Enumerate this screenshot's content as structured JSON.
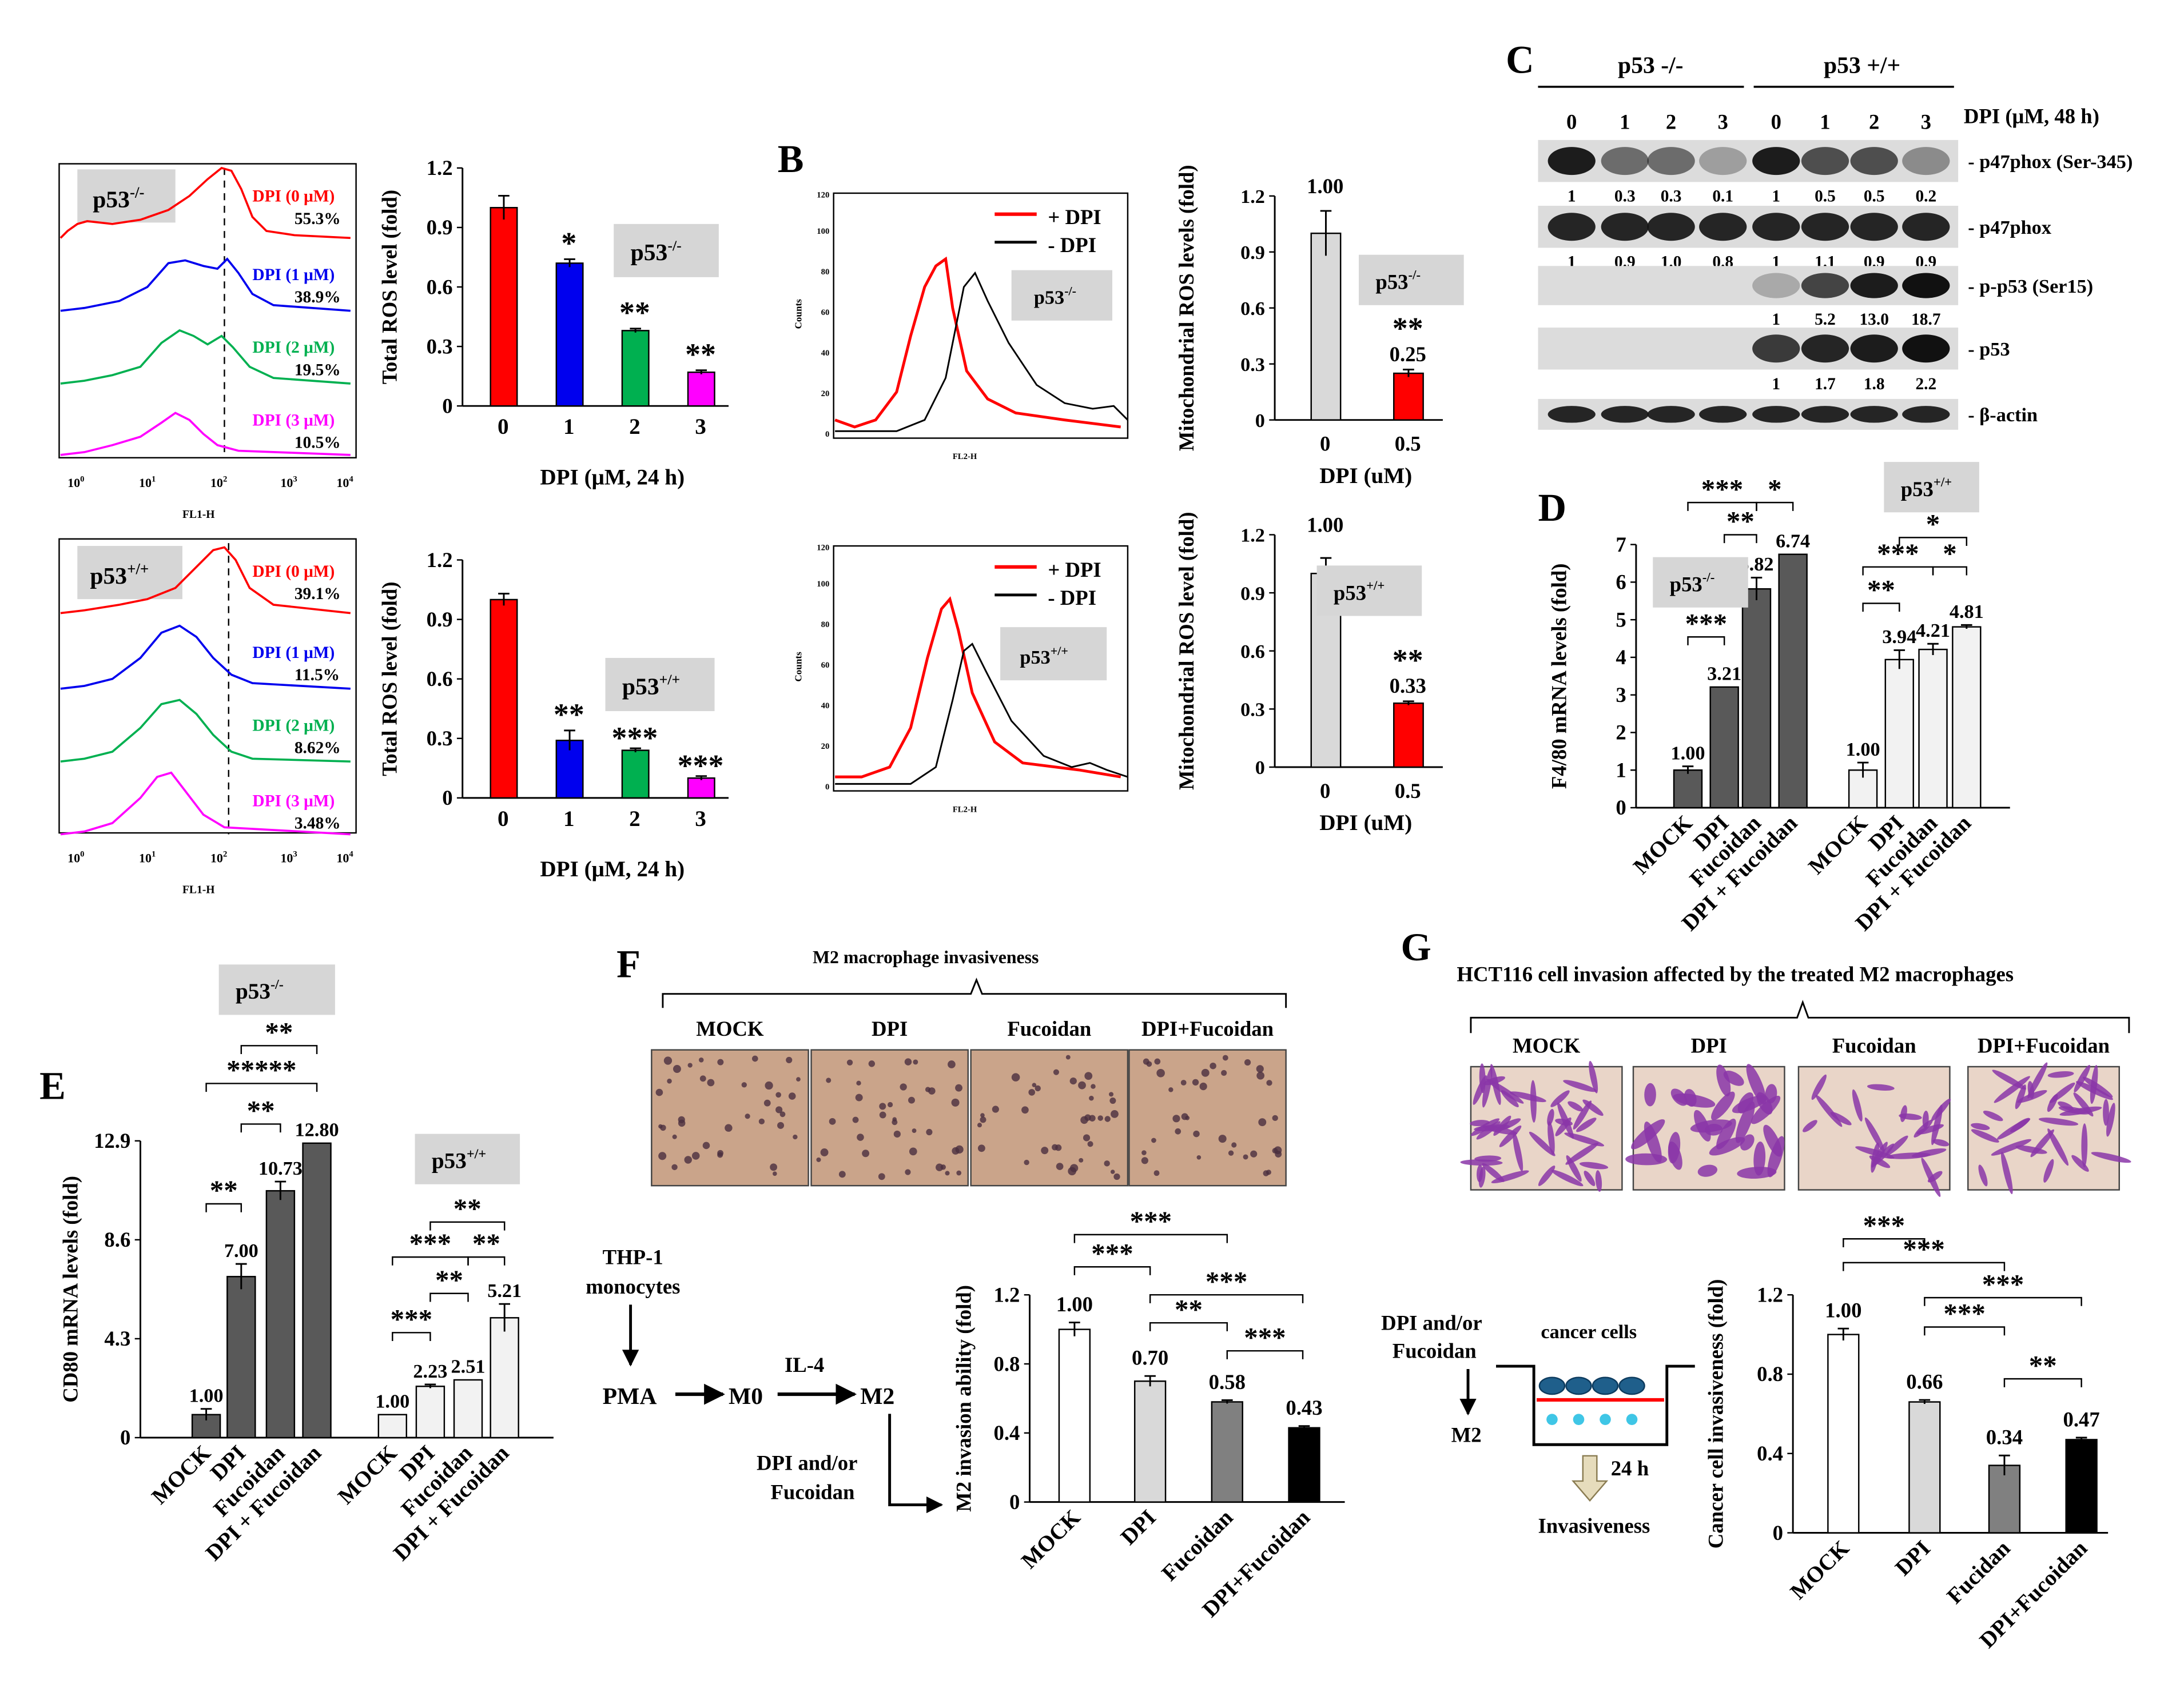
{
  "panel_labels": {
    "B": "B",
    "C": "C",
    "D": "D",
    "E": "E",
    "F": "F",
    "G": "G"
  },
  "colors": {
    "red": "#ff0000",
    "blue": "#0000ee",
    "green": "#00b050",
    "magenta": "#ff00ff",
    "dark": "#595959",
    "light": "#d9d9d9",
    "label_gray": "#d6d6d6"
  },
  "flow": {
    "xlabel": "FL1-H",
    "xticks": [
      "10",
      "10",
      "10",
      "10",
      "10"
    ],
    "xexps": [
      "0",
      "1",
      "2",
      "3",
      "4"
    ],
    "ko": {
      "label": "p53",
      "sup": "-/-",
      "rows": [
        {
          "name": "DPI (0 μM)",
          "pct": "55.3%"
        },
        {
          "name": "DPI (1 μM)",
          "pct": "38.9%"
        },
        {
          "name": "DPI (2 μM)",
          "pct": "19.5%"
        },
        {
          "name": "DPI (3 μM)",
          "pct": "10.5%"
        }
      ]
    },
    "wt": {
      "label": "p53",
      "sup": "+/+",
      "rows": [
        {
          "name": "DPI (0 μM)",
          "pct": "39.1%"
        },
        {
          "name": "DPI (1 μM)",
          "pct": "11.5%"
        },
        {
          "name": "DPI (2 μM)",
          "pct": "8.62%"
        },
        {
          "name": "DPI (3 μM)",
          "pct": "3.48%"
        }
      ]
    }
  },
  "hist_b": {
    "legend": [
      "+ DPI",
      "- DPI"
    ],
    "ylabel": "Counts",
    "xlabel": "FL2-H",
    "yticks": [
      "0",
      "20",
      "40",
      "60",
      "80",
      "100",
      "120"
    ],
    "top_label": {
      "text": "p53",
      "sup": "-/-"
    },
    "bottom_label": {
      "text": "p53",
      "sup": "+/+"
    }
  },
  "chart_data": [
    {
      "id": "A-top",
      "type": "bar",
      "title": "",
      "ylabel": "Total ROS level (fold)",
      "xlabel": "DPI (μM, 24 h)",
      "categories": [
        "0",
        "1",
        "2",
        "3"
      ],
      "values": [
        1.0,
        0.72,
        0.38,
        0.17
      ],
      "errors": [
        0.06,
        0.02,
        0.01,
        0.01
      ],
      "ylim": [
        0,
        1.2
      ],
      "yticks": [
        "0",
        "0.3",
        "0.6",
        "0.9",
        "1.2"
      ],
      "sig": [
        "",
        "*",
        "**",
        "**"
      ],
      "group": "p53",
      "group_sup": "-/-"
    },
    {
      "id": "A-bottom",
      "type": "bar",
      "title": "",
      "ylabel": "Total ROS level (fold)",
      "xlabel": "DPI (μM, 24 h)",
      "categories": [
        "0",
        "1",
        "2",
        "3"
      ],
      "values": [
        1.0,
        0.29,
        0.24,
        0.1
      ],
      "errors": [
        0.03,
        0.05,
        0.01,
        0.01
      ],
      "ylim": [
        0,
        1.2
      ],
      "yticks": [
        "0",
        "0.3",
        "0.6",
        "0.9",
        "1.2"
      ],
      "sig": [
        "",
        "**",
        "***",
        "***"
      ],
      "group": "p53",
      "group_sup": "+/+"
    },
    {
      "id": "B-top",
      "type": "bar",
      "ylabel": "Mitochondrial ROS levels (fold)",
      "xlabel": "DPI (uM)",
      "categories": [
        "0",
        "0.5"
      ],
      "values": [
        1.0,
        0.25
      ],
      "errors": [
        0.12,
        0.02
      ],
      "ylim": [
        0,
        1.2
      ],
      "yticks": [
        "0",
        "0.3",
        "0.6",
        "0.9",
        "1.2"
      ],
      "value_labels": [
        "1.00",
        "0.25"
      ],
      "sig": [
        "",
        "**"
      ],
      "group": "p53",
      "group_sup": "-/-"
    },
    {
      "id": "B-bottom",
      "type": "bar",
      "ylabel": "Mitochondrial ROS level (fold)",
      "xlabel": "DPI (uM)",
      "categories": [
        "0",
        "0.5"
      ],
      "values": [
        1.0,
        0.33
      ],
      "errors": [
        0.08,
        0.01
      ],
      "ylim": [
        0,
        1.2
      ],
      "yticks": [
        "0",
        "0.3",
        "0.6",
        "0.9",
        "1.2"
      ],
      "value_labels": [
        "1.00",
        "0.33"
      ],
      "sig": [
        "",
        "**"
      ],
      "group": "p53",
      "group_sup": "+/+"
    },
    {
      "id": "D",
      "type": "bar",
      "ylabel": "F4/80 mRNA levels (fold)",
      "categories": [
        "MOCK",
        "DPI",
        "Fucoidan",
        "DPI + Fucoidan"
      ],
      "series": [
        {
          "name": "p53-/-",
          "values": [
            1.0,
            3.21,
            5.82,
            6.74
          ],
          "labels": [
            "1.00",
            "3.21",
            "5.82",
            "6.74"
          ]
        },
        {
          "name": "p53+/+",
          "values": [
            1.0,
            3.94,
            4.21,
            4.81
          ],
          "labels": [
            "1.00",
            "3.94",
            "4.21",
            "4.81"
          ]
        }
      ],
      "ylim": [
        0,
        7
      ],
      "yticks": [
        "0",
        "1",
        "2",
        "3",
        "4",
        "5",
        "6",
        "7"
      ],
      "sig_ko": [
        "***",
        "**",
        "***",
        "*"
      ],
      "sig_wt": [
        "**",
        "***",
        "*",
        "*"
      ],
      "group_ko": "p53",
      "group_ko_sup": "-/-",
      "group_wt": "p53",
      "group_wt_sup": "+/+"
    },
    {
      "id": "E",
      "type": "bar",
      "ylabel": "CD80 mRNA levels (fold)",
      "categories": [
        "MOCK",
        "DPI",
        "Fucoidan",
        "DPI + Fucoidan"
      ],
      "series": [
        {
          "name": "p53-/-",
          "values": [
            1.0,
            7.0,
            10.73,
            12.8
          ],
          "labels": [
            "1.00",
            "7.00",
            "10.73",
            "12.80"
          ]
        },
        {
          "name": "p53+/+",
          "values": [
            1.0,
            2.23,
            2.51,
            5.21
          ],
          "labels": [
            "1.00",
            "2.23",
            "2.51",
            "5.21"
          ]
        }
      ],
      "ylim": [
        0,
        12.9
      ],
      "yticks": [
        "0",
        "4.3",
        "8.6",
        "12.9"
      ],
      "sig_ko": [
        "**",
        "**",
        "*****",
        "**"
      ],
      "sig_wt": [
        "***",
        "**",
        "***",
        "**",
        "**"
      ],
      "group_ko": "p53",
      "group_ko_sup": "-/-",
      "group_wt": "p53",
      "group_wt_sup": "+/+"
    },
    {
      "id": "F",
      "type": "bar",
      "ylabel": "M2 invasion ability (fold)",
      "categories": [
        "MOCK",
        "DPI",
        "Fucoidan",
        "DPI+Fucoidan"
      ],
      "values": [
        1.0,
        0.7,
        0.58,
        0.43
      ],
      "labels": [
        "1.00",
        "0.70",
        "0.58",
        "0.43"
      ],
      "ylim": [
        0,
        1.2
      ],
      "yticks": [
        "0",
        "0.4",
        "0.8",
        "1.2"
      ],
      "sig": [
        "***",
        "***",
        "***",
        "**",
        "***"
      ]
    },
    {
      "id": "G",
      "type": "bar",
      "ylabel": "Cancer cell invasiveness (fold)",
      "categories": [
        "MOCK",
        "DPI",
        "Fucidan",
        "DPI+Fucoidan"
      ],
      "values": [
        1.0,
        0.66,
        0.34,
        0.47
      ],
      "labels": [
        "1.00",
        "0.66",
        "0.34",
        "0.47"
      ],
      "ylim": [
        0,
        1.2
      ],
      "yticks": [
        "0",
        "0.4",
        "0.8",
        "1.2"
      ],
      "sig": [
        "***",
        "***",
        "***",
        "***",
        "**"
      ]
    }
  ],
  "western": {
    "header_ko": "p53 -/-",
    "header_wt": "p53 +/+",
    "dose_label": "DPI (μM, 48 h)",
    "doses": [
      "0",
      "1",
      "2",
      "3",
      "0",
      "1",
      "2",
      "3"
    ],
    "rows": [
      {
        "label": "p47phox (Ser-345)",
        "vals": [
          "1",
          "0.3",
          "0.3",
          "0.1",
          "1",
          "0.5",
          "0.5",
          "0.2"
        ]
      },
      {
        "label": "p47phox",
        "vals": [
          "1",
          "0.9",
          "1.0",
          "0.8",
          "1",
          "1.1",
          "0.9",
          "0.9"
        ]
      },
      {
        "label": "p-p53 (Ser15)",
        "vals": [
          "",
          "",
          "",
          "",
          "1",
          "5.2",
          "13.0",
          "18.7"
        ]
      },
      {
        "label": "p53",
        "vals": [
          "",
          "",
          "",
          "",
          "1",
          "1.7",
          "1.8",
          "2.2"
        ]
      },
      {
        "label": "β-actin",
        "vals": []
      }
    ]
  },
  "panel_f": {
    "title": "M2 macrophage invasiveness",
    "conditions": [
      "MOCK",
      "DPI",
      "Fucoidan",
      "DPI+Fucoidan"
    ],
    "flow": {
      "thp1": "THP-1",
      "monocytes": "monocytes",
      "pma": "PMA",
      "m0": "M0",
      "il4": "IL-4",
      "m2": "M2",
      "dpi1": "DPI and/or",
      "dpi2": "Fucoidan"
    }
  },
  "panel_g": {
    "title": "HCT116 cell invasion affected by the treated M2 macrophages",
    "conditions": [
      "MOCK",
      "DPI",
      "Fucoidan",
      "DPI+Fucoidan"
    ],
    "schema": {
      "dpi1": "DPI and/or",
      "dpi2": "Fucoidan",
      "cancer": "cancer cells",
      "m2": "M2",
      "time": "24 h",
      "inv": "Invasiveness"
    }
  }
}
